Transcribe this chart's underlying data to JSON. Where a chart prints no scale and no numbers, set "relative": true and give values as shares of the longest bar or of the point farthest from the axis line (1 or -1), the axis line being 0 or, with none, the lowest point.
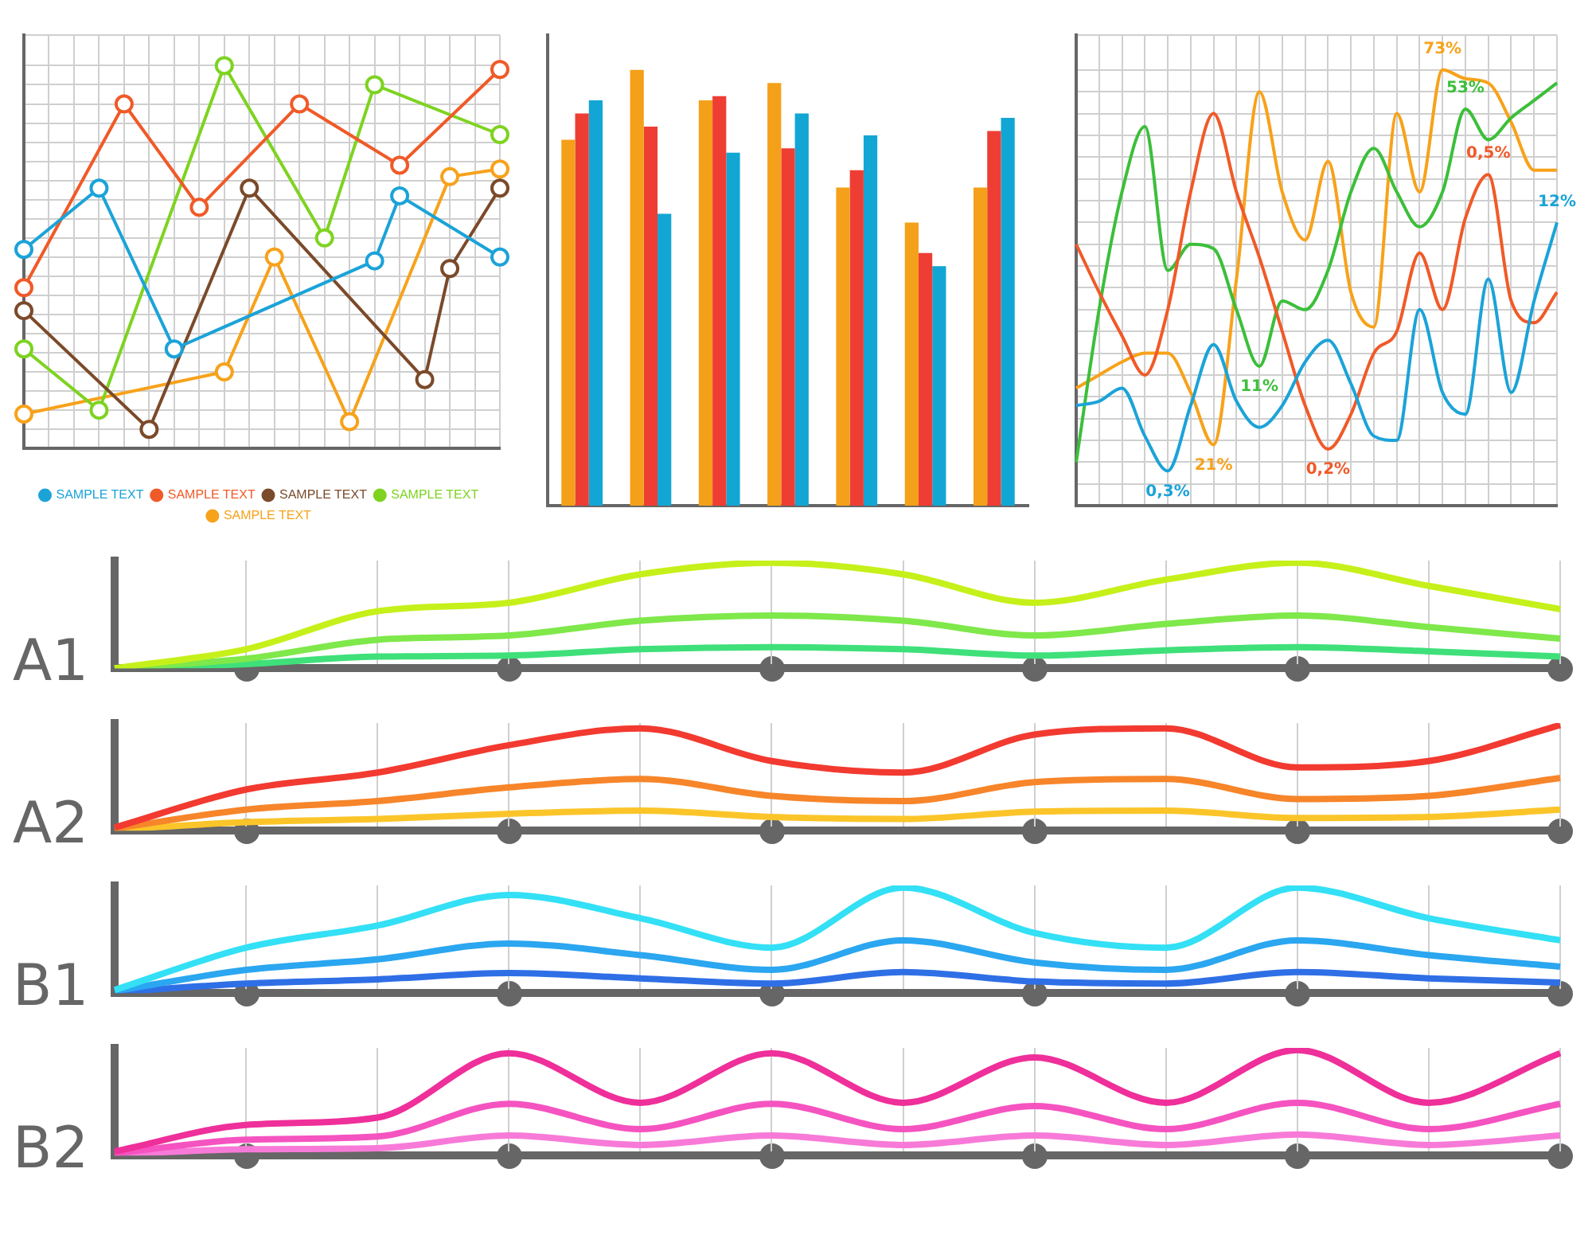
{
  "chart_data": [
    {
      "type": "line",
      "relative": true,
      "grid": true,
      "legend": "bottom",
      "marker": "circle",
      "line_style": "solid",
      "categories": [
        null,
        null,
        null,
        null,
        null,
        null,
        null,
        null,
        null,
        null,
        null,
        null,
        null,
        null,
        null,
        null,
        null,
        null,
        null,
        null
      ],
      "series": [
        {
          "name": "SAMPLE TEXT",
          "color": "#1ba3d8",
          "values": [
            0.52,
            null,
            null,
            0.68,
            null,
            null,
            0.26,
            null,
            null,
            null,
            null,
            null,
            null,
            null,
            0.49,
            0.66,
            null,
            null,
            null,
            0.5
          ]
        },
        {
          "name": "SAMPLE TEXT",
          "color": "#f05a28",
          "values": [
            0.42,
            null,
            null,
            null,
            0.9,
            null,
            null,
            0.63,
            null,
            null,
            null,
            0.9,
            null,
            null,
            null,
            0.74,
            null,
            null,
            null,
            0.99
          ]
        },
        {
          "name": "SAMPLE TEXT",
          "color": "#7b4a2a",
          "values": [
            0.36,
            null,
            null,
            null,
            null,
            0.05,
            null,
            null,
            null,
            0.68,
            null,
            null,
            null,
            null,
            null,
            null,
            0.18,
            0.47,
            null,
            0.68
          ]
        },
        {
          "name": "SAMPLE TEXT",
          "color": "#7ed321",
          "values": [
            0.26,
            null,
            null,
            0.1,
            null,
            null,
            null,
            null,
            1,
            null,
            null,
            null,
            0.55,
            null,
            0.95,
            null,
            null,
            null,
            null,
            0.82
          ]
        },
        {
          "name": "SAMPLE TEXT",
          "color": "#f7a21b",
          "values": [
            0.09,
            null,
            null,
            null,
            null,
            null,
            null,
            null,
            0.2,
            null,
            0.5,
            null,
            null,
            0.07,
            null,
            null,
            null,
            0.71,
            null,
            0.73
          ]
        }
      ]
    },
    {
      "type": "bar",
      "relative": true,
      "categories": [
        null,
        null,
        null,
        null,
        null,
        null,
        null
      ],
      "series": [
        {
          "color": "#f5a01a",
          "values": [
            0.84,
            1,
            0.93,
            0.97,
            0.73,
            0.65,
            0.73
          ]
        },
        {
          "color": "#ee3e34",
          "values": [
            0.9,
            0.87,
            0.94,
            0.82,
            0.77,
            0.58,
            0.86
          ]
        },
        {
          "color": "#12a6d4",
          "values": [
            0.93,
            0.67,
            0.81,
            0.9,
            0.85,
            0.55,
            0.89
          ]
        }
      ]
    },
    {
      "type": "line",
      "relative": true,
      "grid": true,
      "marker": "none",
      "categories": [
        null,
        null,
        null,
        null,
        null,
        null,
        null,
        null,
        null,
        null,
        null,
        null,
        null,
        null,
        null,
        null,
        null,
        null,
        null,
        null,
        null,
        null
      ],
      "series": [
        {
          "color": "#1ba3d8",
          "values": [
            0.23,
            0.24,
            0.27,
            0.16,
            0.08,
            0.23,
            0.37,
            0.24,
            0.18,
            0.23,
            0.33,
            0.38,
            0.28,
            0.16,
            0.15,
            0.45,
            0.26,
            0.21,
            0.52,
            0.26,
            0.47,
            0.65
          ]
        },
        {
          "color": "#f05a28",
          "values": [
            0.6,
            0.49,
            0.39,
            0.3,
            0.45,
            0.72,
            0.9,
            0.72,
            0.57,
            0.4,
            0.23,
            0.13,
            0.21,
            0.35,
            0.4,
            0.58,
            0.45,
            0.66,
            0.76,
            0.47,
            0.42,
            0.49
          ]
        },
        {
          "color": "#3cbf3a",
          "values": [
            0.1,
            0.45,
            0.72,
            0.87,
            0.54,
            0.6,
            0.59,
            0.45,
            0.32,
            0.47,
            0.45,
            0.54,
            0.72,
            0.82,
            0.72,
            0.64,
            0.72,
            0.91,
            0.84,
            0.89,
            0.93,
            0.97
          ]
        },
        {
          "color": "#f7a21b",
          "values": [
            0.27,
            0.3,
            0.33,
            0.35,
            0.35,
            0.26,
            0.14,
            0.52,
            0.95,
            0.72,
            0.61,
            0.79,
            0.49,
            0.41,
            0.9,
            0.72,
            1,
            0.98,
            0.97,
            0.88,
            0.77,
            0.77
          ]
        }
      ],
      "annotations": [
        {
          "text": "0,3%",
          "y": 0.08
        },
        {
          "text": "12%",
          "y": 0.65
        },
        {
          "text": "0,2%",
          "y": 0.13
        },
        {
          "text": "0,5%",
          "y": 0.76
        },
        {
          "text": "11%",
          "y": 0.32
        },
        {
          "text": "53%",
          "y": 0.91
        },
        {
          "text": "21%",
          "y": 0.14
        },
        {
          "text": "73%",
          "y": 1
        }
      ]
    },
    {
      "type": "line",
      "relative": true,
      "grid": "x",
      "marker": "none",
      "ylabel": "A1",
      "categories": [
        null,
        null,
        null,
        null,
        null,
        null,
        null,
        null,
        null,
        null,
        null,
        null
      ],
      "series": [
        {
          "color": "#c6f01a",
          "values": [
            0,
            0.18,
            0.54,
            0.62,
            0.89,
            1,
            0.89,
            0.62,
            0.84,
            1,
            0.78,
            0.56
          ]
        },
        {
          "color": "#7fe84a",
          "values": [
            0,
            0.09,
            0.27,
            0.31,
            0.45,
            0.5,
            0.45,
            0.31,
            0.42,
            0.5,
            0.39,
            0.28
          ]
        },
        {
          "color": "#3fe07a",
          "values": [
            0,
            0.04,
            0.11,
            0.12,
            0.18,
            0.2,
            0.18,
            0.12,
            0.17,
            0.2,
            0.16,
            0.11
          ]
        }
      ]
    },
    {
      "type": "line",
      "relative": true,
      "grid": "x",
      "marker": "none",
      "ylabel": "A2",
      "categories": [
        null,
        null,
        null,
        null,
        null,
        null,
        null,
        null,
        null,
        null,
        null,
        null
      ],
      "series": [
        {
          "color": "#f23a30",
          "values": [
            0.03,
            0.39,
            0.55,
            0.81,
            0.97,
            0.66,
            0.55,
            0.91,
            0.97,
            0.6,
            0.66,
            1
          ]
        },
        {
          "color": "#f7852a",
          "values": [
            0.02,
            0.2,
            0.28,
            0.41,
            0.49,
            0.33,
            0.28,
            0.46,
            0.49,
            0.3,
            0.33,
            0.5
          ]
        },
        {
          "color": "#fbc52a",
          "values": [
            0.01,
            0.08,
            0.11,
            0.16,
            0.19,
            0.13,
            0.11,
            0.18,
            0.19,
            0.12,
            0.13,
            0.2
          ]
        }
      ]
    },
    {
      "type": "line",
      "relative": true,
      "grid": "x",
      "marker": "none",
      "ylabel": "B1",
      "categories": [
        null,
        null,
        null,
        null,
        null,
        null,
        null,
        null,
        null,
        null,
        null,
        null
      ],
      "series": [
        {
          "color": "#33e0f5",
          "values": [
            0.03,
            0.43,
            0.64,
            0.93,
            0.71,
            0.43,
            1,
            0.57,
            0.43,
            1,
            0.71,
            0.5
          ]
        },
        {
          "color": "#2ba6f0",
          "values": [
            0.02,
            0.22,
            0.32,
            0.47,
            0.36,
            0.22,
            0.5,
            0.29,
            0.22,
            0.5,
            0.36,
            0.25
          ]
        },
        {
          "color": "#2f6fe6",
          "values": [
            0.01,
            0.09,
            0.13,
            0.19,
            0.14,
            0.09,
            0.2,
            0.11,
            0.09,
            0.2,
            0.14,
            0.1
          ]
        }
      ]
    },
    {
      "type": "line",
      "relative": true,
      "grid": "x",
      "marker": "none",
      "ylabel": "B2",
      "categories": [
        null,
        null,
        null,
        null,
        null,
        null,
        null,
        null,
        null,
        null,
        null,
        null
      ],
      "series": [
        {
          "color": "#ef2f9a",
          "values": [
            0.04,
            0.29,
            0.36,
            0.97,
            0.5,
            0.97,
            0.5,
            0.93,
            0.5,
            1,
            0.5,
            0.97
          ]
        },
        {
          "color": "#f553c0",
          "values": [
            0.02,
            0.15,
            0.18,
            0.49,
            0.25,
            0.49,
            0.25,
            0.47,
            0.25,
            0.5,
            0.25,
            0.49
          ]
        },
        {
          "color": "#f87ad8",
          "values": [
            0.01,
            0.06,
            0.07,
            0.19,
            0.1,
            0.19,
            0.1,
            0.19,
            0.1,
            0.2,
            0.1,
            0.19
          ]
        }
      ]
    }
  ]
}
